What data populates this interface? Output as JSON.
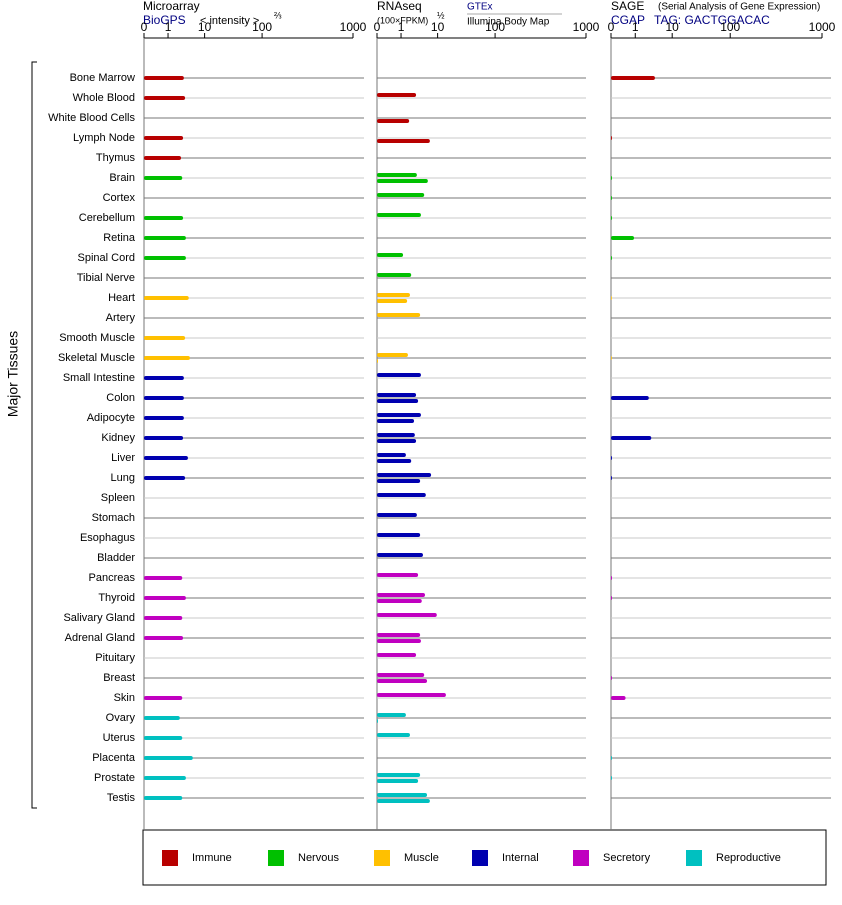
{
  "chart_data": {
    "type": "bar",
    "y_label": "Major Tissues",
    "categories": [
      "Bone Marrow",
      "Whole Blood",
      "White Blood Cells",
      "Lymph Node",
      "Thymus",
      "Brain",
      "Cortex",
      "Cerebellum",
      "Retina",
      "Spinal Cord",
      "Tibial Nerve",
      "Heart",
      "Artery",
      "Smooth Muscle",
      "Skeletal Muscle",
      "Small Intestine",
      "Colon",
      "Adipocyte",
      "Kidney",
      "Liver",
      "Lung",
      "Spleen",
      "Stomach",
      "Esophagus",
      "Bladder",
      "Pancreas",
      "Thyroid",
      "Salivary Gland",
      "Adrenal Gland",
      "Pituitary",
      "Breast",
      "Skin",
      "Ovary",
      "Uterus",
      "Placenta",
      "Prostate",
      "Testis"
    ],
    "groups": [
      {
        "name": "Immune",
        "color": "#b80000"
      },
      {
        "name": "Nervous",
        "color": "#00c000"
      },
      {
        "name": "Muscle",
        "color": "#ffc000"
      },
      {
        "name": "Internal",
        "color": "#0000b0"
      },
      {
        "name": "Secretory",
        "color": "#c000c0"
      },
      {
        "name": "Reproductive",
        "color": "#00c0c0"
      }
    ],
    "category_groups": [
      0,
      0,
      0,
      0,
      0,
      1,
      1,
      1,
      1,
      1,
      1,
      2,
      2,
      2,
      2,
      3,
      3,
      3,
      3,
      3,
      3,
      3,
      3,
      3,
      3,
      4,
      4,
      4,
      4,
      4,
      4,
      4,
      5,
      5,
      5,
      5,
      5
    ],
    "panels": [
      {
        "title": "Microarray",
        "source": "BioGPS",
        "scale_label": "< intensity >",
        "scale_power": "⅔",
        "xlim": [
          0,
          1000
        ],
        "xticks": [
          0,
          1,
          10,
          100,
          1000
        ],
        "series": [
          {
            "values": [
              4.9,
              5.2,
              null,
              4.7,
              4.2,
              4.5,
              null,
              4.7,
              5.4,
              5.4,
              null,
              6.1,
              null,
              5.2,
              6.4,
              4.9,
              4.9,
              4.9,
              4.7,
              5.9,
              5.2,
              null,
              null,
              null,
              null,
              4.5,
              5.4,
              4.5,
              4.7,
              null,
              null,
              4.5,
              3.9,
              4.5,
              7.1,
              5.4,
              4.5
            ]
          }
        ]
      },
      {
        "title": "RNAseq",
        "scale_label": "(100×FPKM)",
        "scale_power": "½",
        "xlim": [
          0,
          1000
        ],
        "xticks": [
          0,
          1,
          10,
          100,
          1000
        ],
        "series": [
          {
            "name": "GTEx",
            "color": "#000080",
            "values": [
              null,
              4.7,
              null,
              null,
              null,
              4.9,
              6.7,
              5.9,
              null,
              1.5,
              3.5,
              3.2,
              5.7,
              null,
              2.7,
              5.9,
              4.7,
              5.9,
              4.4,
              2.2,
              8.4,
              7.1,
              4.9,
              5.7,
              6.4,
              5.2,
              6.9,
              9.8,
              5.7,
              4.7,
              6.7,
              23,
              2.2,
              3.2,
              null,
              5.7,
              7.4
            ]
          },
          {
            "name": "Illumina Body Map",
            "color": "#000000",
            "values": [
              null,
              null,
              3.0,
              8.1,
              null,
              7.6,
              null,
              null,
              null,
              null,
              null,
              2.5,
              null,
              null,
              0.04,
              null,
              5.2,
              4.2,
              4.7,
              3.5,
              5.7,
              null,
              null,
              null,
              null,
              null,
              6.1,
              null,
              5.9,
              null,
              7.4,
              null,
              0.04,
              null,
              null,
              5.2,
              8.1
            ]
          }
        ]
      },
      {
        "title": "SAGE",
        "subtitle": "(Serial Analysis of Gene Expression)",
        "source": "CGAP",
        "tag": "TAG: GACTGGACAC",
        "xlim": [
          0,
          1000
        ],
        "xticks": [
          0,
          1,
          10,
          100,
          1000
        ],
        "series": [
          {
            "values": [
              5.8,
              null,
              null,
              0.04,
              null,
              0.04,
              0.04,
              0.04,
              0.95,
              0.04,
              null,
              0.02,
              null,
              null,
              0.02,
              null,
              4.3,
              null,
              4.9,
              0.04,
              0.04,
              null,
              null,
              null,
              null,
              0.04,
              0.04,
              null,
              null,
              null,
              0.04,
              0.6,
              null,
              null,
              0.04,
              0.04,
              null
            ]
          }
        ]
      }
    ]
  }
}
